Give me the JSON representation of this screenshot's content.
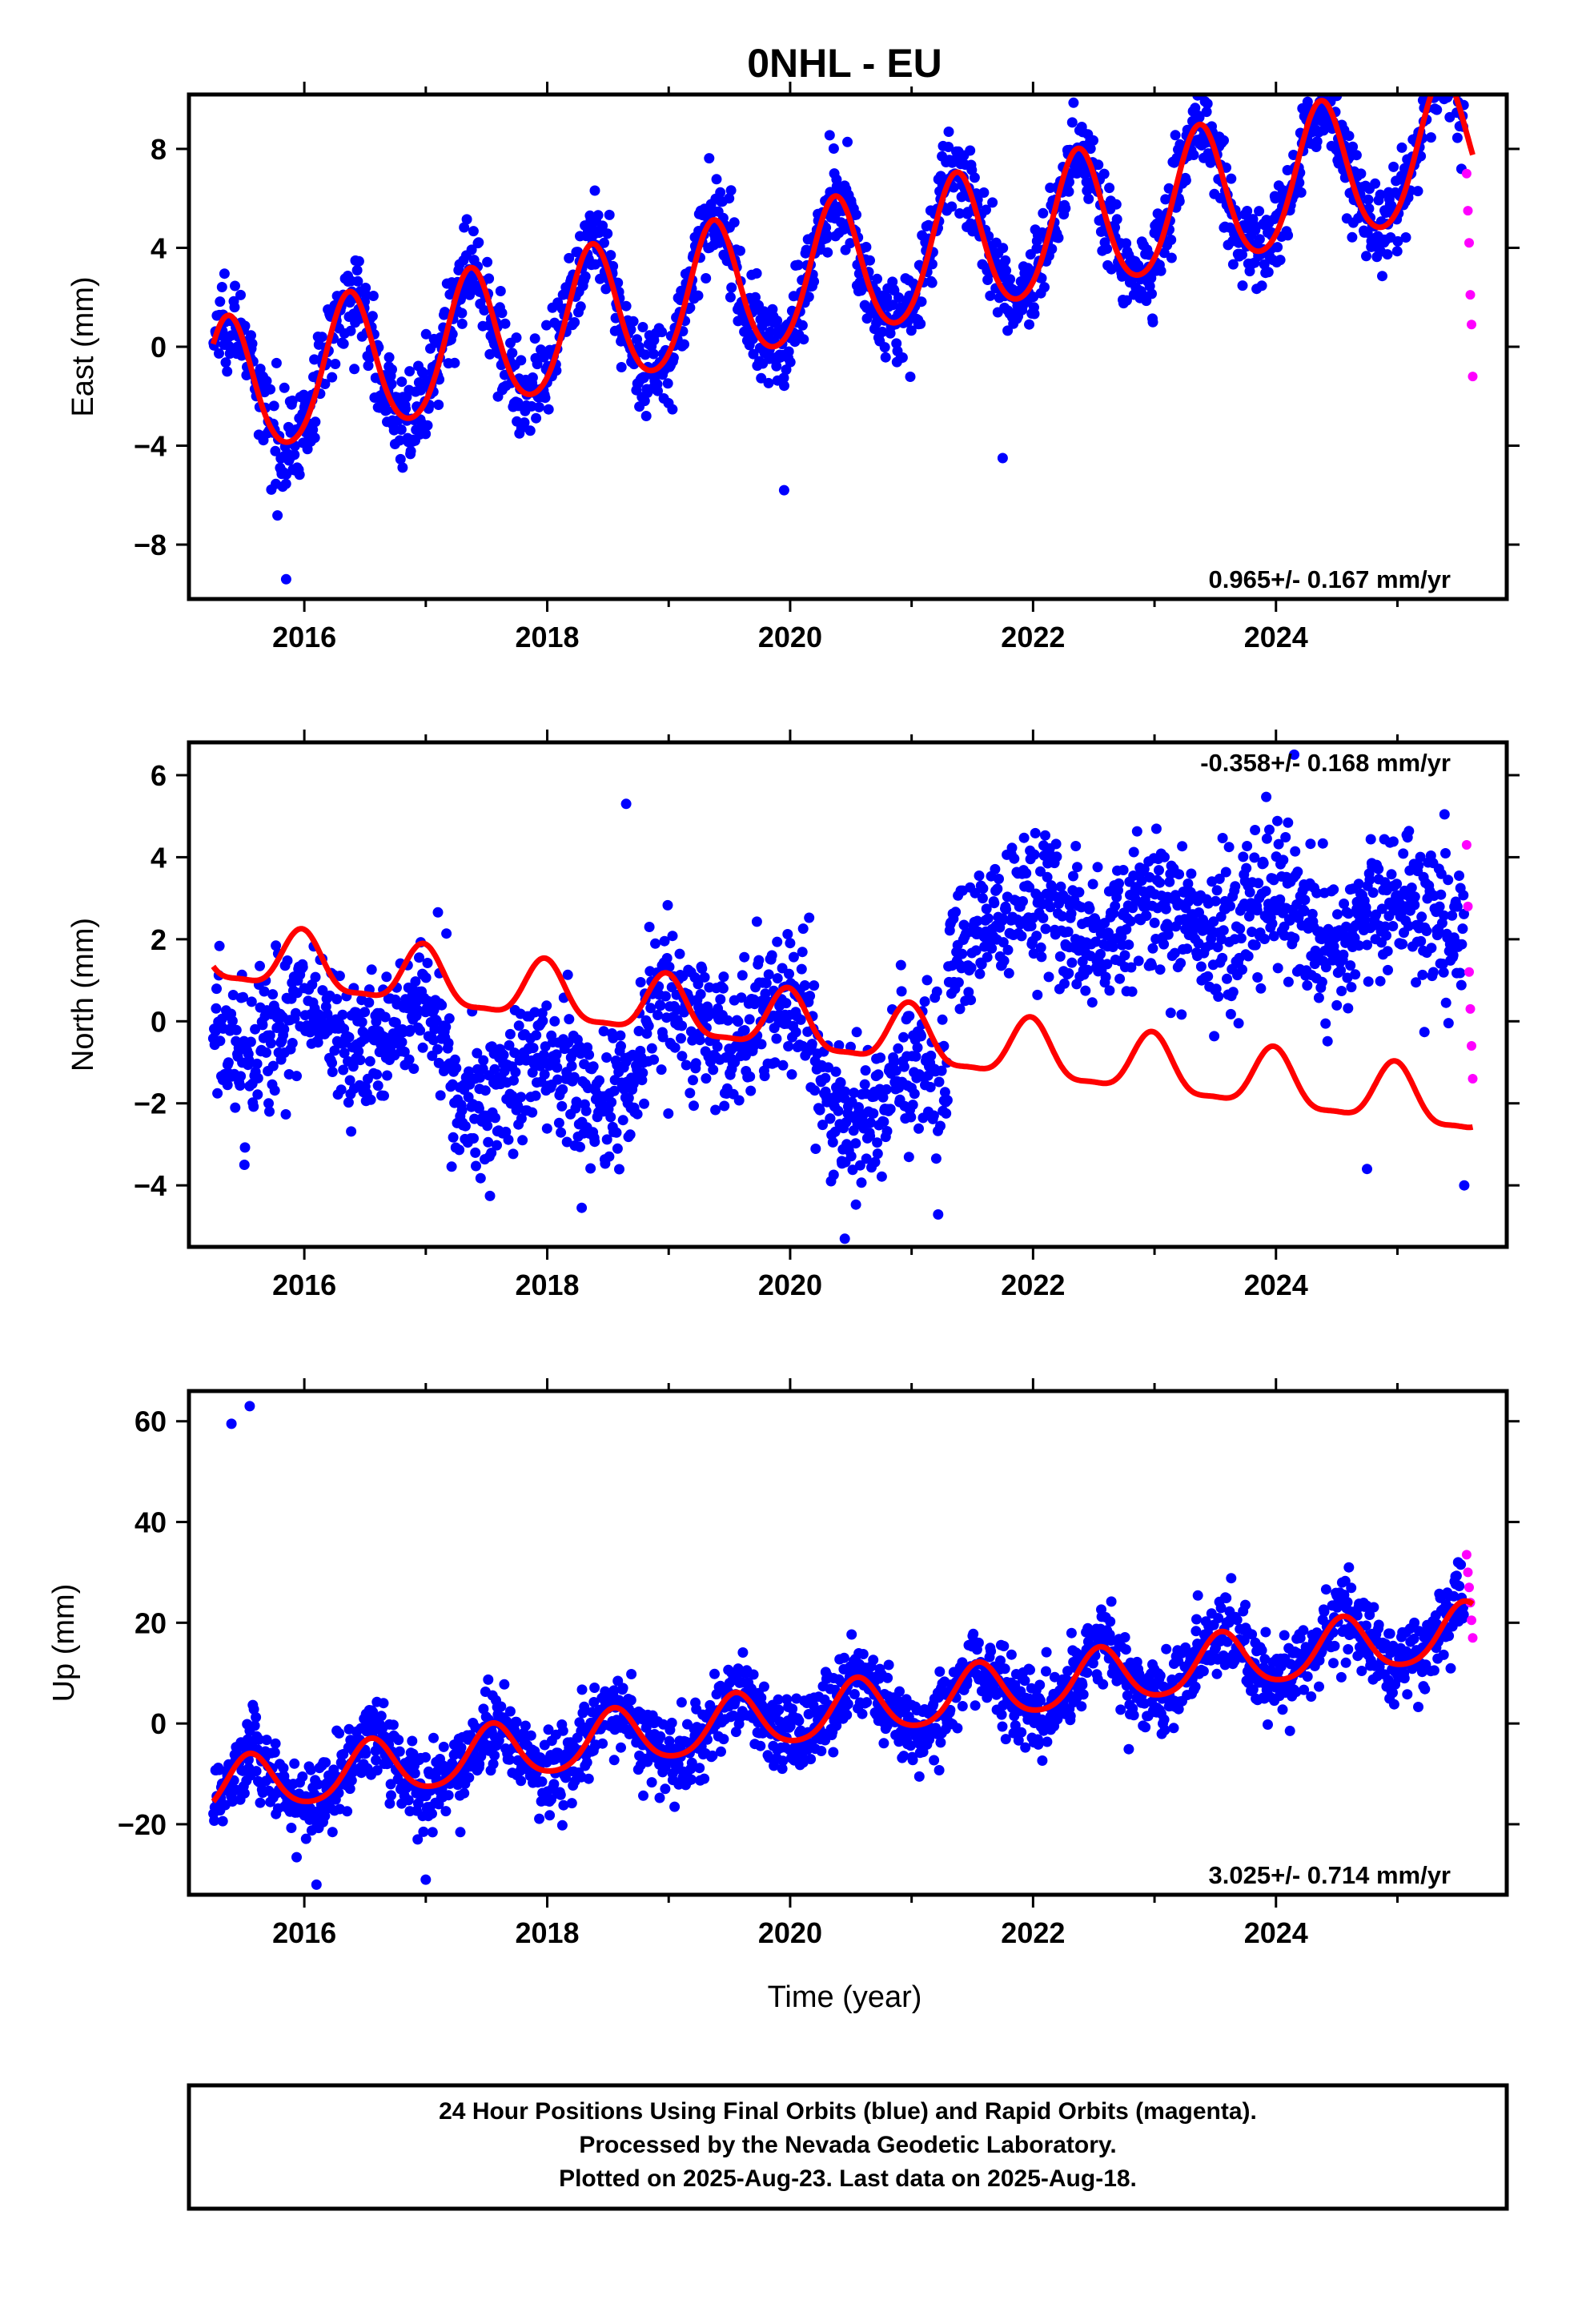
{
  "title": "0NHL - EU",
  "xlabel": "Time (year)",
  "caption": [
    "24 Hour Positions Using Final Orbits (blue) and Rapid Orbits (magenta).",
    "Processed by the Nevada Geodetic Laboratory.",
    "Plotted on 2025-Aug-23. Last data on 2025-Aug-18."
  ],
  "colors": {
    "final": "#0000ff",
    "rapid": "#ff00ff",
    "model": "#ff0000",
    "frame": "#000000"
  },
  "chart_data": [
    {
      "type": "scatter",
      "ylabel": "East (mm)",
      "rate_label": "0.965+/- 0.167 mm/yr",
      "rate_position": "bottom-right",
      "xlim": [
        2015.05,
        2025.9
      ],
      "ylim": [
        -10.2,
        10.2
      ],
      "xticks": [
        2016,
        2018,
        2020,
        2022,
        2024
      ],
      "yticks": [
        -8,
        -4,
        0,
        4,
        8
      ],
      "model": {
        "name": "trend+seasonal",
        "x0": 2015.3,
        "offset": -1.9,
        "rate": 0.965,
        "annual_amp": 2.8,
        "annual_phase_peak": 0.37,
        "semiannual_amp": 0.3
      },
      "final_points": {
        "x_range": [
          2015.25,
          2025.55
        ],
        "scatter": 0.9,
        "excursions": [
          [
            2015.85,
            -9.4
          ],
          [
            2021.25,
            7.7
          ],
          [
            2024.35,
            9.3
          ],
          [
            2025.5,
            9.9
          ],
          [
            2021.75,
            -4.5
          ],
          [
            2019.95,
            -5.8
          ]
        ]
      },
      "rapid_points": {
        "x": [
          2025.57,
          2025.58,
          2025.59,
          2025.6,
          2025.61,
          2025.62
        ],
        "y": [
          7.0,
          5.5,
          4.2,
          2.1,
          0.9,
          -1.2
        ]
      }
    },
    {
      "type": "scatter",
      "ylabel": "North (mm)",
      "rate_label": "-0.358+/- 0.168 mm/yr",
      "rate_position": "top-right",
      "xlim": [
        2015.05,
        2025.9
      ],
      "ylim": [
        -5.5,
        6.8
      ],
      "xticks": [
        2016,
        2018,
        2020,
        2022,
        2024
      ],
      "yticks": [
        -4,
        -2,
        0,
        2,
        4,
        6
      ],
      "model": {
        "name": "trend+seasonal",
        "x0": 2015.3,
        "offset": 1.6,
        "rate": -0.358,
        "annual_amp": 0.7,
        "annual_phase_peak": 0.98,
        "semiannual_amp": 0.2
      },
      "final_points": {
        "x_range": [
          2015.25,
          2025.55
        ],
        "scatter": 0.9,
        "steps": [
          [
            2015.25,
            2017.2,
            -0.2
          ],
          [
            2017.2,
            2018.8,
            -1.5
          ],
          [
            2018.8,
            2020.2,
            0.0
          ],
          [
            2020.2,
            2021.3,
            -1.8
          ],
          [
            2021.3,
            2025.6,
            2.5
          ]
        ],
        "excursions": [
          [
            2018.65,
            5.3
          ],
          [
            2024.15,
            6.5
          ],
          [
            2020.45,
            -5.3
          ],
          [
            2024.75,
            -3.6
          ],
          [
            2025.55,
            -4.0
          ]
        ]
      },
      "rapid_points": {
        "x": [
          2025.57,
          2025.58,
          2025.59,
          2025.6,
          2025.61,
          2025.62
        ],
        "y": [
          4.3,
          2.8,
          1.2,
          0.3,
          -0.6,
          -1.4
        ]
      }
    },
    {
      "type": "scatter",
      "ylabel": "Up (mm)",
      "rate_label": "3.025+/- 0.714 mm/yr",
      "rate_position": "bottom-right",
      "xlim": [
        2015.05,
        2025.9
      ],
      "ylim": [
        -34,
        66
      ],
      "xticks": [
        2016,
        2018,
        2020,
        2022,
        2024
      ],
      "yticks": [
        -20,
        0,
        20,
        40,
        60
      ],
      "model": {
        "name": "trend+seasonal",
        "x0": 2015.3,
        "offset": -13.0,
        "rate": 3.025,
        "annual_amp": 5.5,
        "annual_phase_peak": 0.55,
        "semiannual_amp": 0.8
      },
      "final_points": {
        "x_range": [
          2015.25,
          2025.55
        ],
        "scatter": 4.0,
        "excursions": [
          [
            2015.4,
            59.5
          ],
          [
            2015.55,
            63.0
          ],
          [
            2016.1,
            -32.0
          ],
          [
            2017.0,
            -31.0
          ],
          [
            2024.6,
            31.0
          ],
          [
            2025.5,
            32.0
          ]
        ]
      },
      "rapid_points": {
        "x": [
          2025.57,
          2025.58,
          2025.59,
          2025.6,
          2025.61,
          2025.62
        ],
        "y": [
          33.5,
          30.0,
          27.0,
          24.0,
          20.5,
          17.0
        ]
      }
    }
  ]
}
